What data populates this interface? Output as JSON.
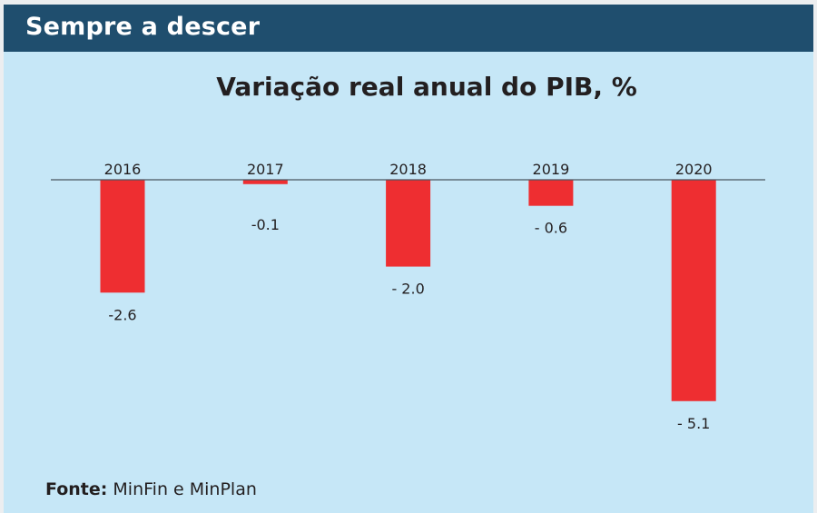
{
  "header": {
    "title": "Sempre a descer"
  },
  "source": {
    "label": "Fonte:",
    "text": "MinFin e MinPlan"
  },
  "colors": {
    "header_bg": "#1f4e6e",
    "panel_bg": "#c6e7f7",
    "bar": "#ee2e31",
    "baseline": "#4a5560",
    "text": "#231f20"
  },
  "chart_data": {
    "type": "bar",
    "title": "Variação real anual do PIB, %",
    "xlabel": "",
    "ylabel": "",
    "categories": [
      "2016",
      "2017",
      "2018",
      "2019",
      "2020"
    ],
    "values": [
      -2.6,
      -0.1,
      -2.0,
      -0.6,
      -5.1
    ],
    "value_labels": [
      "-2.6",
      "-0.1",
      "- 2.0",
      "- 0.6",
      "- 5.1"
    ],
    "ylim": [
      -5.1,
      0
    ],
    "grid": false,
    "legend": "none",
    "category_label_position": "top"
  }
}
